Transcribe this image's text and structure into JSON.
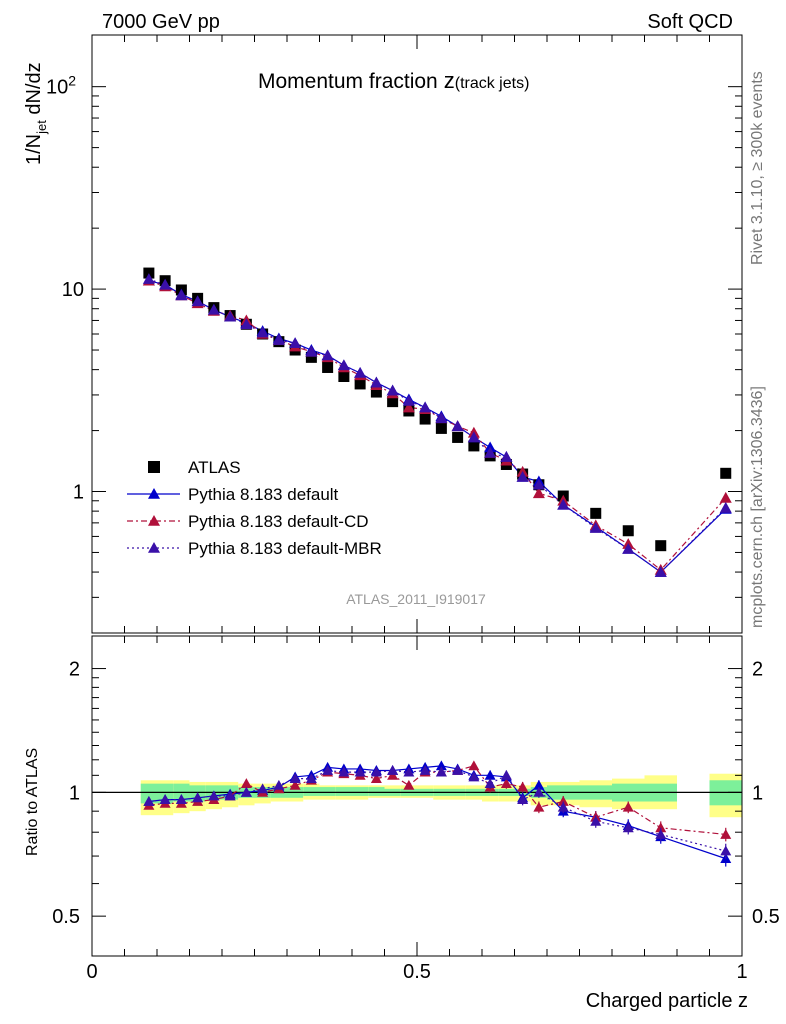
{
  "header": {
    "left": "7000 GeV pp",
    "right": "Soft QCD"
  },
  "side_labels": {
    "rivet": "Rivet 3.1.10, ≥ 300k events",
    "mcplots": "mcplots.cern.ch [arXiv:1306.3436]"
  },
  "analysis_id": "ATLAS_2011_I919017",
  "colors": {
    "atlas": "#000000",
    "default": "#0000cc",
    "cd": "#b0103a",
    "mbr": "#3a10a8",
    "band_green": "#7df09a",
    "band_yellow": "#ffff88"
  },
  "chart_data": [
    {
      "type": "scatter",
      "title": "Momentum fraction",
      "title_sub": "z",
      "title_paren": "(track jets)",
      "ylabel": "1/N",
      "ylabel_sub": "jet",
      "ylabel_rest": " dN/dz",
      "yscale": "log",
      "ylim": [
        0.2,
        180
      ],
      "xlim": [
        0,
        1
      ],
      "yticks": [
        {
          "value": 1,
          "label": "1"
        },
        {
          "value": 10,
          "label": "10"
        },
        {
          "value": 100,
          "label": "10",
          "sup": "2"
        }
      ],
      "x": [
        0.0875,
        0.1125,
        0.1375,
        0.1625,
        0.1875,
        0.2125,
        0.2375,
        0.2625,
        0.2875,
        0.3125,
        0.3375,
        0.3625,
        0.3875,
        0.4125,
        0.4375,
        0.4625,
        0.4875,
        0.5125,
        0.5375,
        0.5625,
        0.5875,
        0.6125,
        0.6375,
        0.6625,
        0.6875,
        0.725,
        0.775,
        0.825,
        0.875,
        0.975
      ],
      "series": [
        {
          "name": "ATLAS",
          "marker": "square",
          "values": [
            12.0,
            11.0,
            9.9,
            9.0,
            8.1,
            7.4,
            6.7,
            6.0,
            5.5,
            5.0,
            4.6,
            4.1,
            3.7,
            3.4,
            3.1,
            2.78,
            2.5,
            2.28,
            2.05,
            1.85,
            1.68,
            1.5,
            1.36,
            1.22,
            1.08,
            0.95,
            0.78,
            0.64,
            0.54,
            1.23
          ]
        },
        {
          "name": "Pythia 8.183 default",
          "marker": "triangle",
          "line": "solid",
          "values": [
            11.0,
            10.5,
            9.4,
            8.7,
            7.9,
            7.3,
            6.8,
            6.2,
            5.7,
            5.4,
            5.0,
            4.7,
            4.2,
            3.85,
            3.45,
            3.15,
            2.85,
            2.6,
            2.35,
            2.1,
            1.85,
            1.65,
            1.48,
            1.18,
            1.12,
            0.86,
            0.67,
            0.52,
            0.4,
            0.82
          ]
        },
        {
          "name": "Pythia 8.183 default-CD",
          "marker": "triangle",
          "line": "dashdot",
          "values": [
            11.0,
            10.3,
            9.3,
            8.5,
            7.8,
            7.4,
            7.0,
            6.0,
            5.6,
            5.2,
            4.9,
            4.6,
            4.1,
            3.75,
            3.35,
            3.05,
            2.6,
            2.55,
            2.3,
            2.1,
            1.95,
            1.55,
            1.42,
            1.25,
            0.98,
            0.9,
            0.68,
            0.55,
            0.41,
            0.93
          ]
        },
        {
          "name": "Pythia 8.183 default-MBR",
          "marker": "triangle",
          "line": "dotted",
          "values": [
            11.2,
            10.5,
            9.3,
            8.7,
            7.9,
            7.3,
            6.7,
            6.1,
            5.6,
            5.4,
            4.9,
            4.7,
            4.2,
            3.85,
            3.45,
            3.15,
            2.8,
            2.6,
            2.3,
            2.1,
            1.85,
            1.55,
            1.48,
            1.18,
            1.08,
            0.86,
            0.66,
            0.52,
            0.4,
            0.83
          ]
        }
      ]
    },
    {
      "type": "scatter",
      "ylabel": "Ratio to ATLAS",
      "xlabel": "Charged particle z",
      "ylim": [
        0.4,
        2.4
      ],
      "yscale": "log",
      "xticks": [
        {
          "value": 0,
          "label": "0"
        },
        {
          "value": 0.5,
          "label": "0.5"
        },
        {
          "value": 1,
          "label": "1"
        }
      ],
      "yticks": [
        {
          "value": 0.5,
          "label": "0.5"
        },
        {
          "value": 1,
          "label": "1"
        },
        {
          "value": 2,
          "label": "2"
        }
      ],
      "x": [
        0.0875,
        0.1125,
        0.1375,
        0.1625,
        0.1875,
        0.2125,
        0.2375,
        0.2625,
        0.2875,
        0.3125,
        0.3375,
        0.3625,
        0.3875,
        0.4125,
        0.4375,
        0.4625,
        0.4875,
        0.5125,
        0.5375,
        0.5625,
        0.5875,
        0.6125,
        0.6375,
        0.6625,
        0.6875,
        0.725,
        0.775,
        0.825,
        0.875,
        0.975
      ],
      "bands": {
        "bin_edges": [
          0.075,
          0.1,
          0.125,
          0.15,
          0.175,
          0.2,
          0.225,
          0.25,
          0.275,
          0.3,
          0.325,
          0.35,
          0.375,
          0.4,
          0.425,
          0.45,
          0.475,
          0.5,
          0.525,
          0.55,
          0.575,
          0.6,
          0.625,
          0.65,
          0.675,
          0.7,
          0.75,
          0.8,
          0.85,
          0.9,
          0.95,
          1.0
        ],
        "green_lo": [
          0.94,
          0.94,
          0.95,
          0.95,
          0.96,
          0.96,
          0.97,
          0.97,
          0.97,
          0.97,
          0.98,
          0.98,
          0.98,
          0.98,
          0.98,
          0.98,
          0.98,
          0.98,
          0.98,
          0.98,
          0.98,
          0.98,
          0.98,
          0.98,
          0.97,
          0.96,
          0.96,
          0.95,
          0.95,
          null,
          0.93
        ],
        "green_hi": [
          1.05,
          1.05,
          1.05,
          1.04,
          1.04,
          1.04,
          1.03,
          1.03,
          1.03,
          1.03,
          1.03,
          1.03,
          1.03,
          1.03,
          1.03,
          1.02,
          1.02,
          1.02,
          1.02,
          1.02,
          1.02,
          1.02,
          1.02,
          1.02,
          1.03,
          1.04,
          1.04,
          1.05,
          1.05,
          null,
          1.07
        ],
        "yellow_lo": [
          0.88,
          0.88,
          0.89,
          0.9,
          0.91,
          0.92,
          0.93,
          0.94,
          0.95,
          0.95,
          0.96,
          0.96,
          0.96,
          0.96,
          0.97,
          0.97,
          0.97,
          0.97,
          0.96,
          0.96,
          0.96,
          0.95,
          0.95,
          0.95,
          0.93,
          0.93,
          0.92,
          0.91,
          0.91,
          null,
          0.87
        ],
        "yellow_hi": [
          1.07,
          1.07,
          1.07,
          1.06,
          1.06,
          1.06,
          1.05,
          1.05,
          1.05,
          1.05,
          1.05,
          1.04,
          1.04,
          1.04,
          1.04,
          1.04,
          1.04,
          1.04,
          1.04,
          1.04,
          1.04,
          1.04,
          1.04,
          1.04,
          1.06,
          1.06,
          1.07,
          1.08,
          1.1,
          null,
          1.11
        ]
      },
      "series": [
        {
          "name": "Pythia 8.183 default",
          "values": [
            0.95,
            0.96,
            0.96,
            0.97,
            0.98,
            0.99,
            1.0,
            1.01,
            1.03,
            1.09,
            1.1,
            1.15,
            1.14,
            1.14,
            1.13,
            1.13,
            1.14,
            1.15,
            1.16,
            1.14,
            1.1,
            1.1,
            1.09,
            0.97,
            1.04,
            0.9,
            0.87,
            0.83,
            0.78,
            0.69
          ],
          "err": [
            0.02,
            0.02,
            0.02,
            0.02,
            0.02,
            0.02,
            0.02,
            0.02,
            0.02,
            0.02,
            0.02,
            0.02,
            0.02,
            0.02,
            0.02,
            0.02,
            0.02,
            0.02,
            0.02,
            0.02,
            0.02,
            0.03,
            0.03,
            0.03,
            0.03,
            0.03,
            0.03,
            0.03,
            0.03,
            0.03
          ]
        },
        {
          "name": "Pythia 8.183 default-CD",
          "values": [
            0.93,
            0.94,
            0.94,
            0.95,
            0.96,
            0.98,
            1.05,
            1.0,
            1.02,
            1.04,
            1.07,
            1.12,
            1.11,
            1.1,
            1.08,
            1.1,
            1.04,
            1.12,
            1.12,
            1.13,
            1.16,
            1.03,
            1.05,
            1.03,
            0.92,
            0.95,
            0.87,
            0.92,
            0.82,
            0.79
          ],
          "err": [
            0.02,
            0.02,
            0.02,
            0.02,
            0.02,
            0.02,
            0.02,
            0.02,
            0.02,
            0.02,
            0.02,
            0.02,
            0.02,
            0.02,
            0.02,
            0.02,
            0.02,
            0.02,
            0.02,
            0.02,
            0.02,
            0.03,
            0.03,
            0.03,
            0.03,
            0.03,
            0.03,
            0.03,
            0.03,
            0.03
          ]
        },
        {
          "name": "Pythia 8.183 default-MBR",
          "values": [
            0.95,
            0.96,
            0.96,
            0.97,
            0.98,
            0.98,
            1.0,
            1.02,
            1.04,
            1.08,
            1.08,
            1.13,
            1.12,
            1.12,
            1.12,
            1.13,
            1.12,
            1.13,
            1.12,
            1.13,
            1.09,
            1.05,
            1.1,
            0.96,
            1.0,
            0.92,
            0.85,
            0.82,
            0.79,
            0.72
          ],
          "err": [
            0.02,
            0.02,
            0.02,
            0.02,
            0.02,
            0.02,
            0.02,
            0.02,
            0.02,
            0.02,
            0.02,
            0.02,
            0.02,
            0.02,
            0.02,
            0.02,
            0.02,
            0.02,
            0.02,
            0.02,
            0.02,
            0.03,
            0.03,
            0.03,
            0.03,
            0.03,
            0.03,
            0.03,
            0.03,
            0.03
          ]
        }
      ]
    }
  ]
}
